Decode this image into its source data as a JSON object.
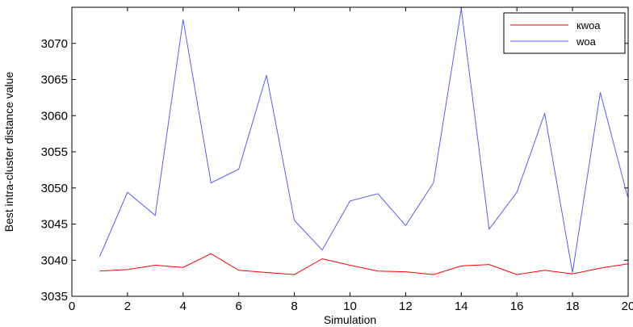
{
  "chart_data": {
    "type": "line",
    "xlabel": "Simulation",
    "ylabel": "Best intra-cluster distance value",
    "xlim": [
      0,
      20
    ],
    "ylim": [
      3035,
      3075
    ],
    "xticks": [
      0,
      2,
      4,
      6,
      8,
      10,
      12,
      14,
      16,
      18,
      20
    ],
    "yticks": [
      3035,
      3040,
      3045,
      3050,
      3055,
      3060,
      3065,
      3070
    ],
    "grid": false,
    "legend_position": "top-right",
    "x": [
      1,
      2,
      3,
      4,
      5,
      6,
      7,
      8,
      9,
      10,
      11,
      12,
      13,
      14,
      15,
      16,
      17,
      18,
      19,
      20
    ],
    "series": [
      {
        "name": "кwoa",
        "color": "#ff0000",
        "values": [
          3038.5,
          3038.7,
          3039.3,
          3039.0,
          3040.9,
          3038.6,
          3038.3,
          3038.0,
          3040.2,
          3039.3,
          3038.5,
          3038.4,
          3038.0,
          3039.2,
          3039.4,
          3038.0,
          3038.6,
          3038.1,
          3038.9,
          3039.5
        ]
      },
      {
        "name": "woa",
        "color": "#5a5aff",
        "values": [
          3040.5,
          3049.4,
          3046.2,
          3073.3,
          3050.7,
          3052.6,
          3065.6,
          3045.5,
          3041.4,
          3048.2,
          3049.2,
          3044.8,
          3050.7,
          3074.8,
          3044.3,
          3049.4,
          3060.3,
          3038.3,
          3063.2,
          3048.5
        ]
      }
    ]
  }
}
